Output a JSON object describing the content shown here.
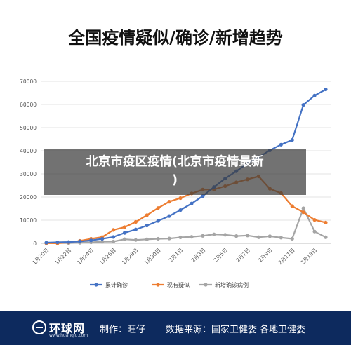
{
  "overlay": {
    "line1": "北京市疫区疫情(北京市疫情最新",
    "line2": ")"
  },
  "footer": {
    "logo_name": "环球网",
    "logo_url": "www.huanqiu.com",
    "producer": "制作：旺仔",
    "source": "数据来源：国家卫健委 各地卫健委"
  },
  "colors": {
    "series_blue": "#4472c4",
    "series_orange": "#ed7d31",
    "series_gray": "#a5a5a5",
    "footer_bg": "#0d2a5e"
  },
  "chart_data": {
    "type": "line",
    "title": "全国疫情疑似/确诊/新增趋势",
    "ylim": [
      0,
      70000
    ],
    "yticks": [
      0,
      10000,
      20000,
      30000,
      40000,
      50000,
      60000,
      70000
    ],
    "x_tick_labels": [
      "1月20日",
      "1月22日",
      "1月24日",
      "1月26日",
      "1月28日",
      "1月30日",
      "2月1日",
      "2月3日",
      "2月5日",
      "2月7日",
      "2月9日",
      "2月11日",
      "2月13日"
    ],
    "x": [
      "1月20日",
      "1月21日",
      "1月22日",
      "1月23日",
      "1月24日",
      "1月25日",
      "1月26日",
      "1月27日",
      "1月28日",
      "1月29日",
      "1月30日",
      "1月31日",
      "2月1日",
      "2月2日",
      "2月3日",
      "2月4日",
      "2月5日",
      "2月6日",
      "2月7日",
      "2月8日",
      "2月9日",
      "2月10日",
      "2月11日",
      "2月12日",
      "2月13日",
      "2月14日"
    ],
    "grid": true,
    "legend_position": "bottom",
    "series": [
      {
        "name": "累计确诊",
        "values": [
          291,
          440,
          571,
          830,
          1287,
          1975,
          2744,
          4515,
          5974,
          7711,
          9692,
          11791,
          14380,
          17205,
          20438,
          24324,
          28018,
          31161,
          34546,
          37198,
          40171,
          42638,
          44653,
          59804,
          63851,
          66492
        ]
      },
      {
        "name": "现有疑似",
        "values": [
          54,
          37,
          393,
          1072,
          1965,
          2684,
          5794,
          6973,
          9239,
          12167,
          15238,
          17988,
          19544,
          21558,
          23214,
          23260,
          24702,
          26359,
          27657,
          28942,
          23589,
          21675,
          16067,
          13435,
          10109,
          8969
        ]
      },
      {
        "name": "新增确诊病例",
        "values": [
          77,
          149,
          131,
          259,
          444,
          688,
          769,
          1771,
          1459,
          1737,
          1982,
          2102,
          2590,
          2829,
          3235,
          3887,
          3694,
          3143,
          3399,
          2656,
          3062,
          2478,
          2015,
          15152,
          5090,
          2641
        ]
      }
    ]
  }
}
